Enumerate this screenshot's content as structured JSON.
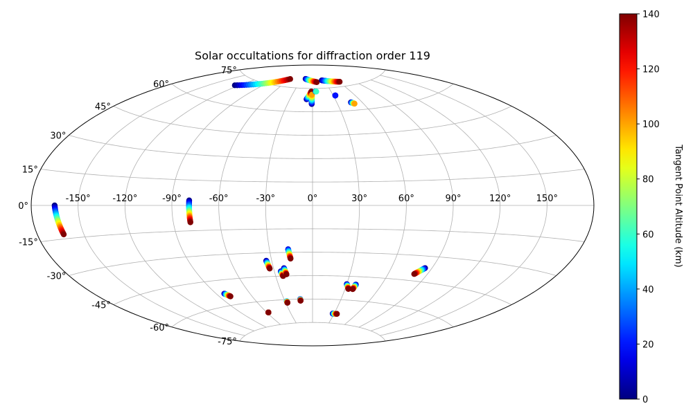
{
  "chart_data": {
    "type": "scatter",
    "projection": "aitoff",
    "title": "Solar occultations for diffraction order 119",
    "xlabel": "",
    "ylabel": "",
    "grid": true,
    "x_ticks": [
      "-150°",
      "-120°",
      "-90°",
      "-60°",
      "-30°",
      "0°",
      "30°",
      "60°",
      "90°",
      "120°",
      "150°"
    ],
    "y_ticks": [
      "-75°",
      "-60°",
      "-45°",
      "-30°",
      "-15°",
      "0°",
      "15°",
      "30°",
      "45°",
      "60°",
      "75°"
    ],
    "colorbar": {
      "label": "Tangent Point Altitude (km)",
      "colormap": "jet",
      "range": [
        0,
        140
      ],
      "ticks": [
        "0",
        "20",
        "40",
        "60",
        "80",
        "100",
        "120",
        "140"
      ]
    },
    "series": [
      {
        "lon_range": [
          -165,
          -163
        ],
        "lat_range": [
          0,
          -13
        ],
        "alt_range": [
          0,
          140
        ]
      },
      {
        "lon_range": [
          -79,
          -79
        ],
        "lat_range": [
          3,
          -10
        ],
        "alt_range": [
          0,
          140
        ]
      },
      {
        "lon_range": [
          -34,
          -33
        ],
        "lat_range": [
          -35,
          -40
        ],
        "alt_range": [
          0,
          140
        ]
      },
      {
        "lon_range": [
          -17,
          -16
        ],
        "lat_range": [
          -28,
          -34
        ],
        "alt_range": [
          10,
          140
        ]
      },
      {
        "lon_range": [
          -25,
          -24
        ],
        "lat_range": [
          -42,
          -45
        ],
        "alt_range": [
          0,
          140
        ]
      },
      {
        "lon_range": [
          -22,
          -21
        ],
        "lat_range": [
          -40,
          -44
        ],
        "alt_range": [
          0,
          140
        ]
      },
      {
        "lon_range": [
          -13,
          -13
        ],
        "lat_range": [
          -60,
          -61
        ],
        "alt_range": [
          0,
          140
        ]
      },
      {
        "lon_range": [
          -28,
          -28
        ],
        "lat_range": [
          -61,
          -62
        ],
        "alt_range": [
          30,
          140
        ]
      },
      {
        "lon_range": [
          -83,
          -80
        ],
        "lat_range": [
          -53,
          -55
        ],
        "alt_range": [
          0,
          140
        ]
      },
      {
        "lon_range": [
          -58,
          -58
        ],
        "lat_range": [
          -67,
          -67
        ],
        "alt_range": [
          60,
          140
        ]
      },
      {
        "lon_range": [
          30,
          33
        ],
        "lat_range": [
          -50,
          -53
        ],
        "alt_range": [
          0,
          140
        ]
      },
      {
        "lon_range": [
          38,
          37
        ],
        "lat_range": [
          -50,
          -53
        ],
        "alt_range": [
          0,
          140
        ]
      },
      {
        "lon_range": [
          85,
          80
        ],
        "lat_range": [
          -37,
          -41
        ],
        "alt_range": [
          0,
          140
        ]
      },
      {
        "lon_range": [
          28,
          34
        ],
        "lat_range": [
          -69,
          -69
        ],
        "alt_range": [
          0,
          140
        ]
      },
      {
        "lon_range": [
          -125,
          -60
        ],
        "lat_range": [
          70,
          80
        ],
        "alt_range": [
          0,
          140
        ]
      },
      {
        "lon_range": [
          -20,
          10
        ],
        "lat_range": [
          81,
          79
        ],
        "alt_range": [
          0,
          140
        ]
      },
      {
        "lon_range": [
          -8,
          -2
        ],
        "lat_range": [
          68,
          73
        ],
        "alt_range": [
          0,
          140
        ]
      },
      {
        "lon_range": [
          -1,
          -1
        ],
        "lat_range": [
          65,
          71
        ],
        "alt_range": [
          0,
          100
        ]
      },
      {
        "lon_range": [
          24,
          62
        ],
        "lat_range": [
          80,
          78
        ],
        "alt_range": [
          0,
          140
        ]
      },
      {
        "lon_range": [
          5,
          6
        ],
        "lat_range": [
          73,
          73
        ],
        "alt_range": [
          0,
          60
        ]
      },
      {
        "lon_range": [
          33,
          33
        ],
        "lat_range": [
          70,
          70
        ],
        "alt_range": [
          0,
          20
        ]
      },
      {
        "lon_range": [
          47,
          50
        ],
        "lat_range": [
          65,
          64
        ],
        "alt_range": [
          0,
          100
        ]
      }
    ]
  }
}
